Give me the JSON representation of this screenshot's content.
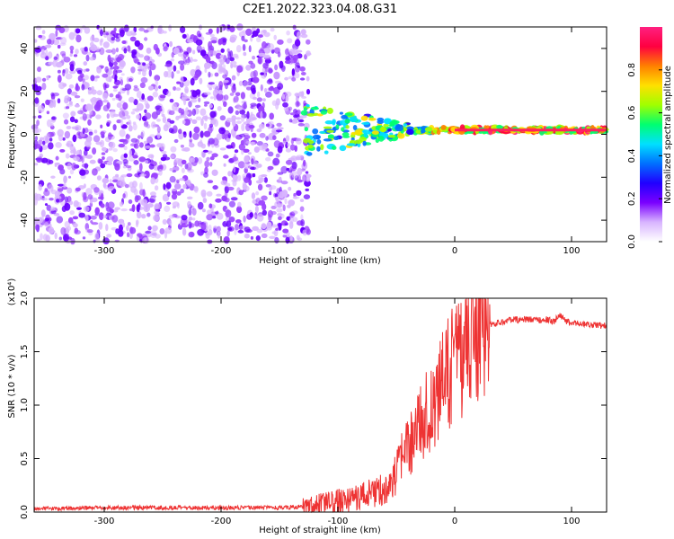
{
  "figure_title": "C2E1.2022.323.04.08.G31",
  "chart_data": [
    {
      "type": "heatmap",
      "xlabel": "Height of straight line (km)",
      "ylabel": "Frequency (Hz)",
      "xlim": [
        -360,
        130
      ],
      "ylim": [
        -50,
        50
      ],
      "xticks": [
        -300,
        -200,
        -100,
        0,
        100
      ],
      "yticks": [
        -40,
        -20,
        0,
        20,
        40
      ],
      "colorbar": {
        "label": "Normalized spectral amplitude",
        "range": [
          0,
          1
        ],
        "ticks": [
          "0.0",
          "0.2",
          "0.4",
          "0.6",
          "0.8"
        ],
        "colormap": [
          "#ffffff",
          "#d8b4ff",
          "#7a00ff",
          "#2000ff",
          "#0070ff",
          "#00e0ff",
          "#00ff70",
          "#a0ff00",
          "#ffe000",
          "#ff8000",
          "#ff0040",
          "#ff2080"
        ]
      },
      "signal_line": {
        "from_x": -130,
        "to_x": 130,
        "frequency": 2,
        "amplitude": 0.75
      },
      "noise_region": {
        "from_x": -360,
        "to_x": -125,
        "amplitude": 0.25
      }
    },
    {
      "type": "line",
      "xlabel": "Height of straight line (km)",
      "ylabel": "SNR (10 * v/v)",
      "scale_label": "(x10⁴)",
      "xlim": [
        -360,
        130
      ],
      "ylim": [
        0,
        2.0
      ],
      "xticks": [
        -300,
        -200,
        -100,
        0,
        100
      ],
      "yticks": [
        "0.0",
        "0.5",
        "1.0",
        "1.5",
        "2.0"
      ],
      "color": "#ee3333",
      "series": [
        {
          "x": [
            -360,
            -300,
            -250,
            -200,
            -150,
            -125,
            -110,
            -100,
            -90,
            -80,
            -70,
            -60,
            -55,
            -50,
            -45,
            -40,
            -35,
            -30,
            -25,
            -20,
            -15,
            -10,
            -5,
            0,
            5,
            10,
            15,
            20,
            25,
            30,
            40,
            50,
            60,
            70,
            80,
            85,
            90,
            95,
            100,
            110,
            120,
            130
          ],
          "y": [
            0.03,
            0.04,
            0.04,
            0.04,
            0.04,
            0.05,
            0.08,
            0.1,
            0.12,
            0.15,
            0.18,
            0.22,
            0.25,
            0.35,
            0.5,
            0.6,
            0.7,
            0.85,
            0.9,
            1.0,
            1.05,
            1.2,
            1.3,
            1.4,
            1.45,
            1.55,
            1.62,
            1.68,
            1.72,
            1.75,
            1.78,
            1.8,
            1.8,
            1.8,
            1.8,
            1.78,
            1.85,
            1.78,
            1.77,
            1.76,
            1.75,
            1.74
          ]
        }
      ]
    }
  ]
}
